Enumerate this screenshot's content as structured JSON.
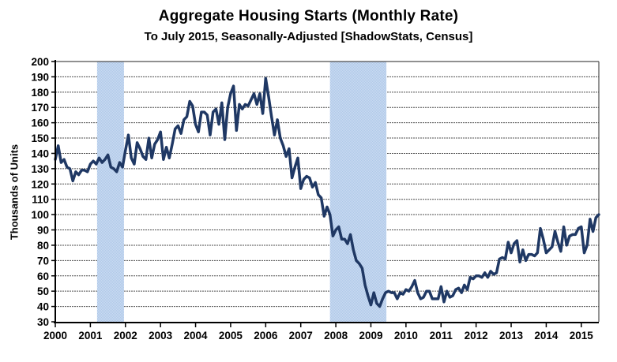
{
  "title": "Aggregate Housing Starts (Monthly Rate)",
  "subtitle": "To July 2015, Seasonally-Adjusted [ShadowStats, Census]",
  "colors": {
    "line": "#1F3864",
    "band_dark": "#AFC8E8",
    "band_light": "#CBDCF2",
    "grid": "#4d4d4d",
    "axis": "#000000",
    "background": "#ffffff"
  },
  "chart_data": {
    "type": "line",
    "title": "Aggregate Housing Starts (Monthly Rate)",
    "subtitle": "To July 2015, Seasonally-Adjusted [ShadowStats, Census]",
    "xlabel": "",
    "ylabel": "Thousands of Units",
    "ylim": [
      30,
      200
    ],
    "ytick_step": 10,
    "grid": "on",
    "legend_position": "none",
    "x_start": "2000-01",
    "x_end": "2015-07",
    "x_tick_labels": [
      "2000",
      "2001",
      "2002",
      "2003",
      "2004",
      "2005",
      "2006",
      "2007",
      "2008",
      "2009",
      "2010",
      "2011",
      "2012",
      "2013",
      "2014",
      "2015"
    ],
    "recession_bands": [
      {
        "start_month_index": 14.3,
        "end_month_index": 23.5
      },
      {
        "start_month_index": 94.0,
        "end_month_index": 113.3
      }
    ],
    "series": [
      {
        "name": "Aggregate Housing Starts",
        "color": "#1F3864",
        "values": [
          136,
          145,
          134,
          136,
          131,
          130,
          122,
          128,
          126,
          129,
          129,
          128,
          133,
          135,
          133,
          137,
          134,
          136,
          139,
          131,
          130,
          128,
          134,
          131,
          142,
          152,
          137,
          133,
          147,
          143,
          138,
          136,
          150,
          137,
          146,
          149,
          154,
          136,
          144,
          137,
          146,
          156,
          158,
          153,
          162,
          164,
          174,
          171,
          159,
          154,
          167,
          167,
          165,
          152,
          167,
          169,
          159,
          173,
          149,
          170,
          179,
          184,
          155,
          172,
          169,
          172,
          171,
          175,
          179,
          172,
          179,
          166,
          189,
          177,
          164,
          152,
          162,
          150,
          145,
          138,
          143,
          124,
          131,
          137,
          117,
          123,
          125,
          124,
          118,
          121,
          113,
          111,
          99,
          105,
          100,
          86,
          90,
          92,
          84,
          84,
          81,
          87,
          77,
          70,
          68,
          65,
          54,
          47,
          41,
          49,
          42,
          40,
          45,
          49,
          50,
          49,
          49,
          45,
          49,
          48,
          51,
          50,
          53,
          57,
          49,
          45,
          46,
          50,
          50,
          45,
          45,
          45,
          53,
          43,
          50,
          46,
          47,
          51,
          52,
          49,
          54,
          51,
          59,
          58,
          60,
          60,
          59,
          62,
          59,
          63,
          61,
          62,
          71,
          72,
          71,
          82,
          75,
          81,
          83,
          69,
          77,
          70,
          74,
          74,
          73,
          75,
          91,
          84,
          75,
          77,
          79,
          89,
          82,
          76,
          92,
          80,
          86,
          87,
          87,
          91,
          92,
          75,
          80,
          97,
          89,
          98,
          100
        ]
      }
    ]
  }
}
